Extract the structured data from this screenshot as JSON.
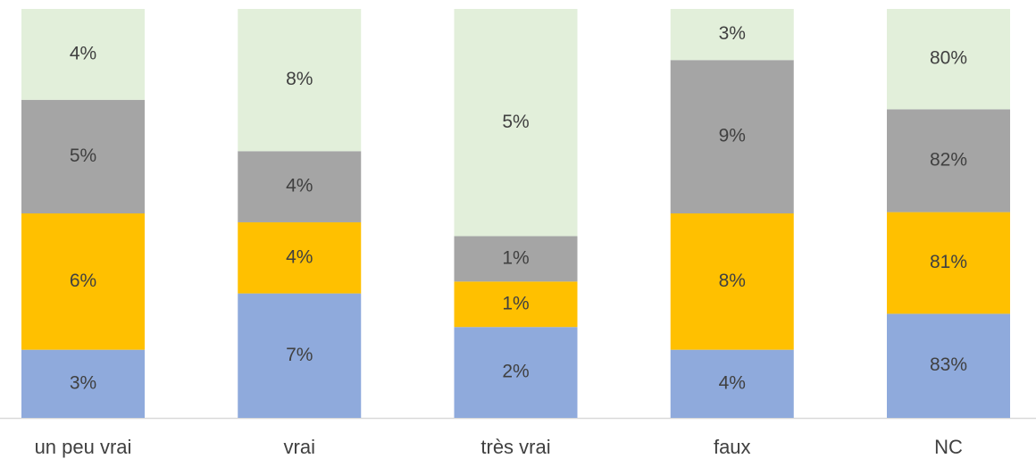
{
  "chart_data": {
    "type": "bar",
    "stacking": "percent",
    "categories": [
      "un peu vrai",
      "vrai",
      "très vrai",
      "faux",
      "NC"
    ],
    "series": [
      {
        "color": "#8faadc",
        "values": [
          3,
          7,
          2,
          4,
          83
        ],
        "value_labels": [
          "3%",
          "7%",
          "2%",
          "4%",
          "83%"
        ]
      },
      {
        "color": "#ffc000",
        "values": [
          6,
          4,
          1,
          8,
          81
        ],
        "value_labels": [
          "6%",
          "4%",
          "1%",
          "8%",
          "81%"
        ]
      },
      {
        "color": "#a5a5a5",
        "values": [
          5,
          4,
          1,
          9,
          82
        ],
        "value_labels": [
          "5%",
          "4%",
          "1%",
          "9%",
          "82%"
        ]
      },
      {
        "color": "#e2efda",
        "values": [
          4,
          8,
          5,
          3,
          80
        ],
        "value_labels": [
          "4%",
          "8%",
          "5%",
          "3%",
          "80%"
        ]
      }
    ]
  }
}
